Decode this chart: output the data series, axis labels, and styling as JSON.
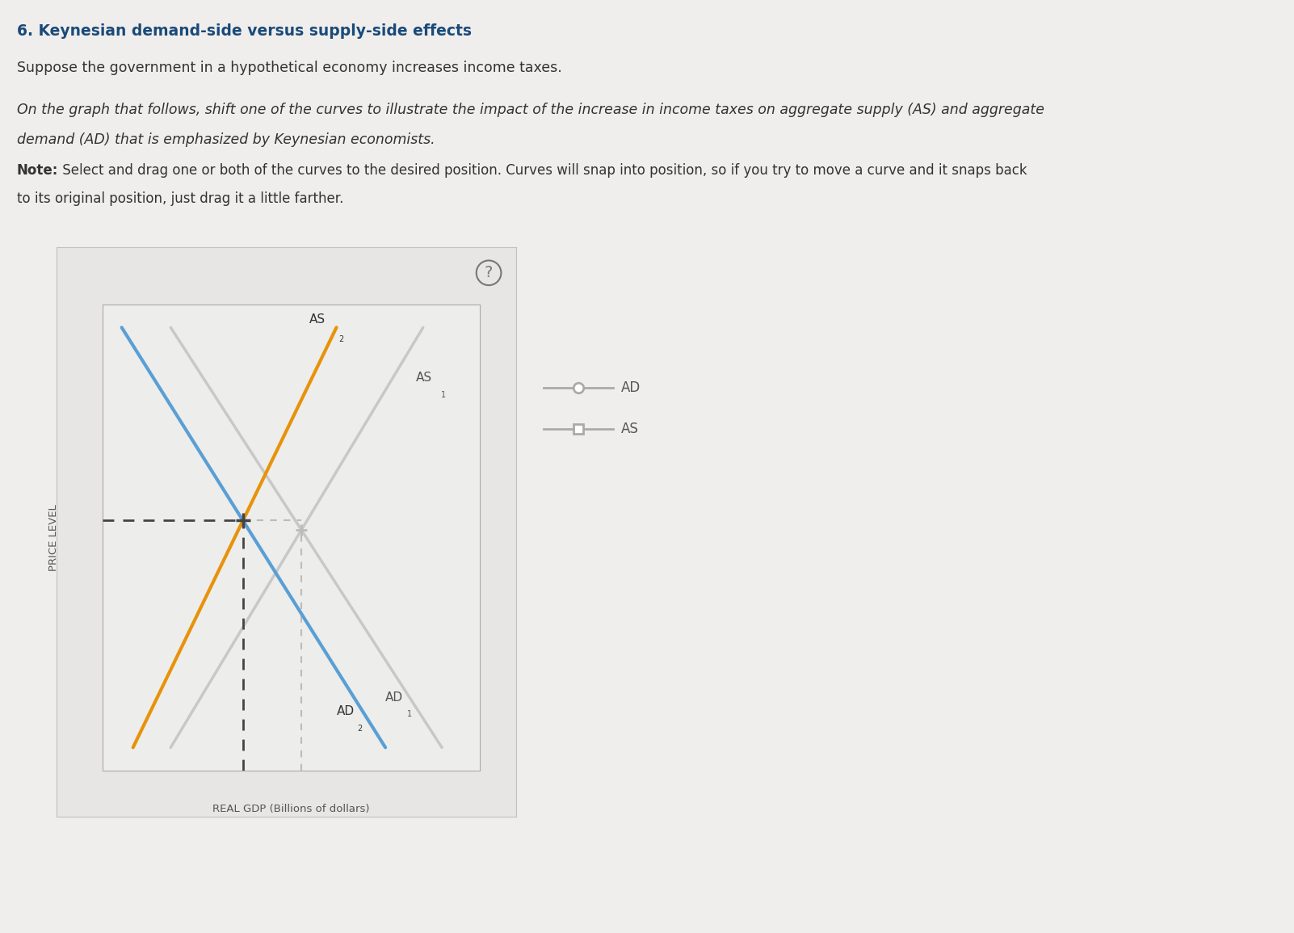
{
  "title": "6. Keynesian demand-side versus supply-side effects",
  "subtitle1": "Suppose the government in a hypothetical economy increases income taxes.",
  "subtitle2_italic": "On the graph that follows, shift one of the curves to illustrate the impact of the increase in income taxes on aggregate supply (AS) and aggregate\ndemand (AD) that is emphasized by Keynesian economists.",
  "note_bold": "Note:",
  "note_rest": " Select and drag one or both of the curves to the desired position. Curves will snap into position, so if you try to move a curve and it snaps back\nto its original position, just drag it a little farther.",
  "ylabel": "PRICE LEVEL",
  "xlabel": "REAL GDP (Billions of dollars)",
  "page_bg": "#f0eeec",
  "graph_outer_bg": "#e8e6e4",
  "graph_inner_bg": "#ededec",
  "gray_line_color": "#c8c8c8",
  "orange_color": "#e8920a",
  "blue_color": "#5a9fd4",
  "dashed_dark": "#444444",
  "dashed_light": "#bbbbbb",
  "text_dark": "#333333",
  "title_color": "#1a4a7a",
  "label_color": "#555555",
  "legend_line_color": "#aaaaaa"
}
